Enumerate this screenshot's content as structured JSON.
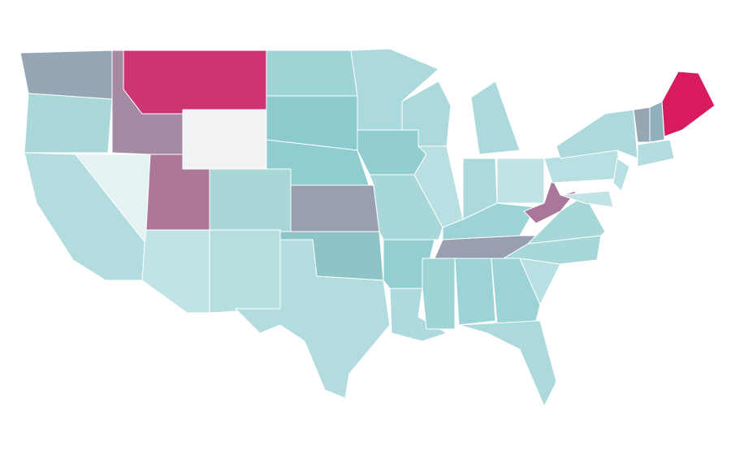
{
  "map": {
    "regions": [
      {
        "color": "#97a6b4"
      },
      {
        "color": "#aad8d9"
      },
      {
        "color": "#b3dcde"
      },
      {
        "color": "#e4f2f3"
      },
      {
        "color": "#a58aa3"
      },
      {
        "color": "#cc3571"
      },
      {
        "color": "#f2f3f4"
      },
      {
        "color": "#ad7797"
      },
      {
        "color": "#a9d7d8"
      },
      {
        "color": "#c2e3e5"
      },
      {
        "color": "#b7dfe0"
      },
      {
        "color": "#a0d3d6"
      },
      {
        "color": "#8ccbce"
      },
      {
        "color": "#90cdd0"
      },
      {
        "color": "#979fb1"
      },
      {
        "color": "#8cc4c8"
      },
      {
        "color": "#b3dcde"
      },
      {
        "color": "#acd9dc"
      },
      {
        "color": "#92cdd0"
      },
      {
        "color": "#a8d7da"
      },
      {
        "color": "#93ced1"
      },
      {
        "color": "#afdadd"
      },
      {
        "color": "#acd9dc"
      },
      {
        "color": "#b8dfe1"
      },
      {
        "color": "#acd9dc"
      },
      {
        "color": "#acd9dc"
      },
      {
        "color": "#c2e3e5"
      },
      {
        "color": "#9bd3d6"
      },
      {
        "color": "#979fb1"
      },
      {
        "color": "#a0d3d6"
      },
      {
        "color": "#9bd3d6"
      },
      {
        "color": "#9bd3d6"
      },
      {
        "color": "#acd9dc"
      },
      {
        "color": "#b8dfe1"
      },
      {
        "color": "#a8d7da"
      },
      {
        "color": "#a8d7da"
      },
      {
        "color": "#a8779a"
      },
      {
        "color": "#b8dfe1"
      },
      {
        "color": "#acd9dc"
      },
      {
        "color": "#b8dfe1"
      },
      {
        "color": "#c2e3e5"
      },
      {
        "color": "#97a6b4"
      },
      {
        "color": "#8fb0bc"
      },
      {
        "color": "#d81b60"
      },
      {
        "color": "#b3dcde"
      }
    ]
  }
}
